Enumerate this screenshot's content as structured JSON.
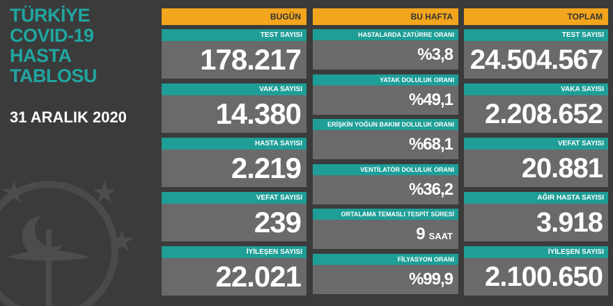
{
  "header": {
    "title_lines": [
      "TÜRKİYE",
      "COVID-19",
      "HASTA",
      "TABLOSU"
    ],
    "date": "31 ARALIK 2020"
  },
  "columns": [
    {
      "title": "BUGÜN",
      "cards": [
        {
          "label": "TEST SAYISI",
          "value": "178.217"
        },
        {
          "label": "VAKA SAYISI",
          "value": "14.380"
        },
        {
          "label": "HASTA SAYISI",
          "value": "2.219"
        },
        {
          "label": "VEFAT SAYISI",
          "value": "239"
        },
        {
          "label": "İYİLEŞEN SAYISI",
          "value": "22.021"
        }
      ]
    },
    {
      "title": "BU HAFTA",
      "cards": [
        {
          "label": "HASTALARDA ZATÜRRE ORANI",
          "value": "%3,8"
        },
        {
          "label": "YATAK DOLULUK ORANI",
          "value": "%49,1"
        },
        {
          "label": "ERİŞKİN YOĞUN BAKIM DOLULUK ORANI",
          "value": "%68,1"
        },
        {
          "label": "VENTİLATÖR DOLULUK ORANI",
          "value": "%36,2"
        },
        {
          "label": "ORTALAMA TEMASLI TESPİT SÜRESİ",
          "value": "9",
          "unit": "SAAT"
        },
        {
          "label": "FİLYASYON ORANI",
          "value": "%99,9"
        }
      ]
    },
    {
      "title": "TOPLAM",
      "cards": [
        {
          "label": "TEST SAYISI",
          "value": "24.504.567"
        },
        {
          "label": "VAKA SAYISI",
          "value": "2.208.652"
        },
        {
          "label": "VEFAT SAYISI",
          "value": "20.881"
        },
        {
          "label": "AĞIR HASTA SAYISI",
          "value": "3.918"
        },
        {
          "label": "İYİLEŞEN SAYISI",
          "value": "2.100.650"
        }
      ]
    }
  ]
}
